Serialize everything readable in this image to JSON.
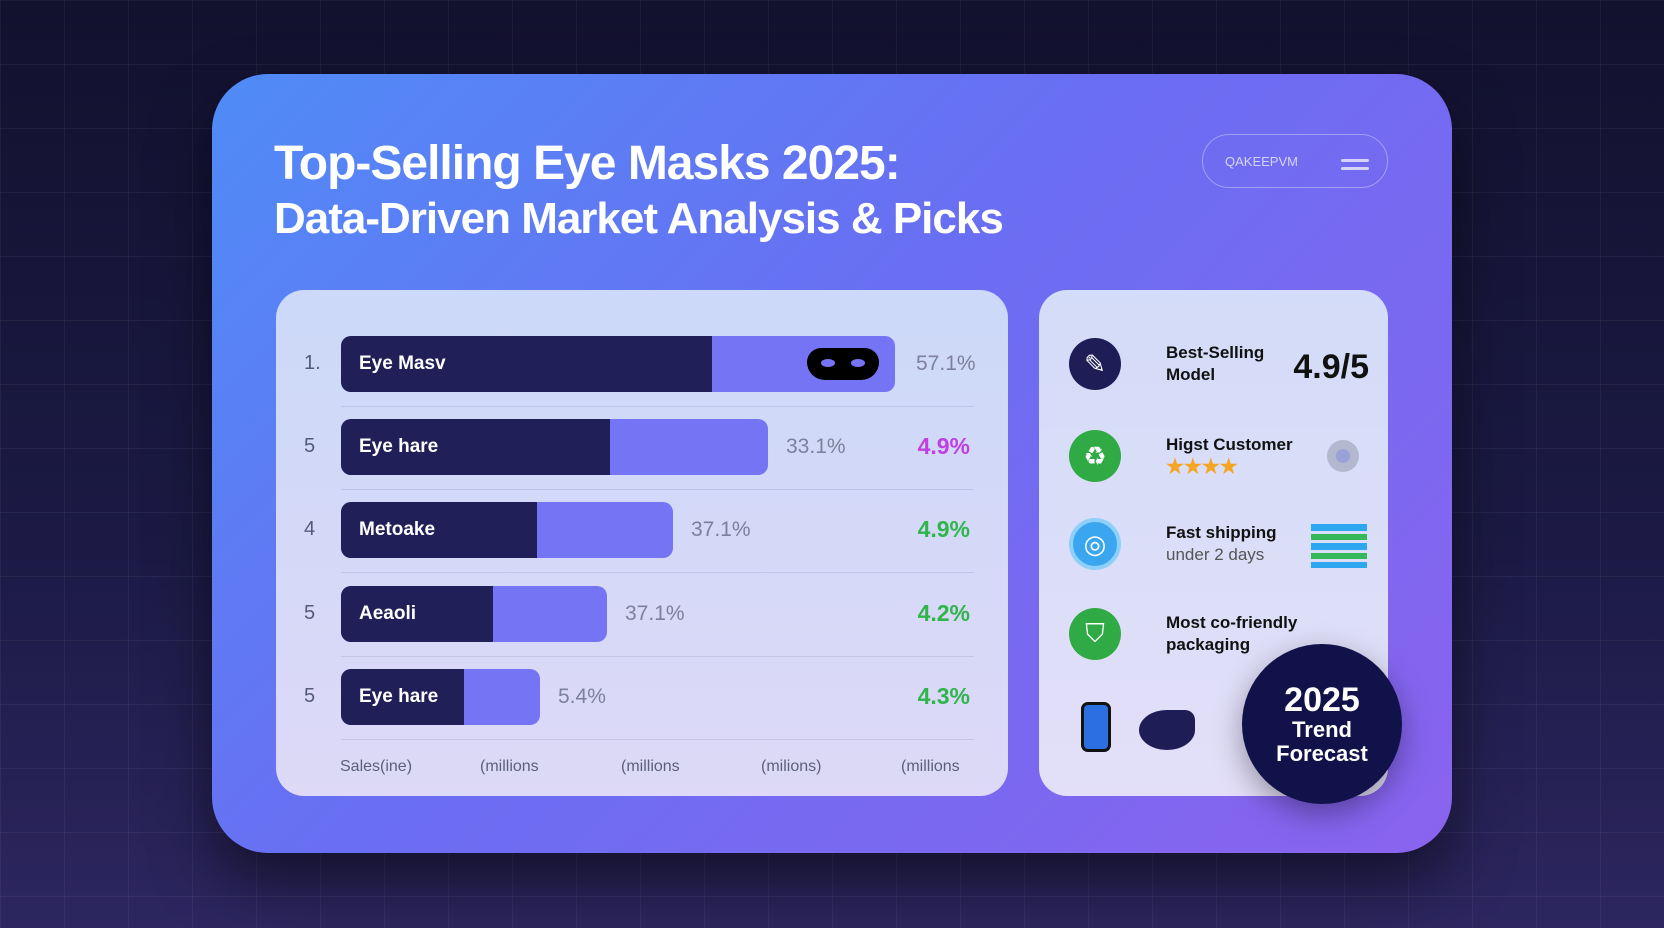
{
  "header": {
    "title_line1": "Top-Selling Eye Masks 2025:",
    "title_line2": "Data-Driven Market Analysis & Picks",
    "pill_label": "QAKEEPVM"
  },
  "chart_data": {
    "type": "bar",
    "orientation": "horizontal",
    "rows": [
      {
        "rank": "1.",
        "name": "Eye Masv",
        "share_label": "57.1%",
        "growth_label": "",
        "fill": 1.0,
        "dark_fraction": 0.67,
        "icon": "eye-mask-icon"
      },
      {
        "rank": "5",
        "name": "Eye hare",
        "share_label": "33.1%",
        "growth_label": "4.9%",
        "fill": 0.77,
        "dark_fraction": 0.63,
        "growth_color": "#c03fe0"
      },
      {
        "rank": "4",
        "name": "Metoake",
        "share_label": "37.1%",
        "growth_label": "4.9%",
        "fill": 0.6,
        "dark_fraction": 0.59,
        "growth_color": "#2fb54a"
      },
      {
        "rank": "5",
        "name": "Aeaoli",
        "share_label": "37.1%",
        "growth_label": "4.2%",
        "fill": 0.48,
        "dark_fraction": 0.57,
        "growth_color": "#2fb54a"
      },
      {
        "rank": "5",
        "name": "Eye hare",
        "share_label": "5.4%",
        "growth_label": "4.3%",
        "fill": 0.36,
        "dark_fraction": 0.62,
        "growth_color": "#2fb54a"
      }
    ],
    "x_tick_labels": [
      "Sales(ine)",
      "(millions",
      "(millions",
      "(milions)",
      "(millions"
    ],
    "colors": {
      "dark": "#211f58",
      "light": "#7574f5"
    }
  },
  "features": [
    {
      "title": "Best-Selling",
      "title2": "Model",
      "value": "4.9/5",
      "icon": "edit-badge-icon",
      "color": "#1e1d55"
    },
    {
      "title": "Higst Customer",
      "stars": "★★★★",
      "icon": "recycle-icon",
      "color": "#2faa45"
    },
    {
      "title": "Fast shipping",
      "subtitle": "under 2 days",
      "icon": "shipping-icon",
      "color": "#3aa6ef"
    },
    {
      "title": "Most co-friendly",
      "title2": "packaging",
      "icon": "eco-package-icon",
      "color": "#2faa45"
    }
  ],
  "badge": {
    "year": "2025",
    "line1": "Trend",
    "line2": "Forecast"
  }
}
